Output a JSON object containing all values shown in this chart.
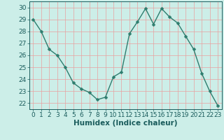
{
  "x": [
    0,
    1,
    2,
    3,
    4,
    5,
    6,
    7,
    8,
    9,
    10,
    11,
    12,
    13,
    14,
    15,
    16,
    17,
    18,
    19,
    20,
    21,
    22,
    23
  ],
  "y": [
    29,
    28,
    26.5,
    26,
    25,
    23.7,
    23.2,
    22.9,
    22.3,
    22.5,
    24.2,
    24.6,
    27.8,
    28.8,
    29.9,
    28.6,
    29.9,
    29.2,
    28.7,
    27.6,
    26.5,
    24.5,
    23.0,
    21.8
  ],
  "line_color": "#2e7d6e",
  "marker": "D",
  "marker_size": 2.5,
  "bg_color": "#cceee8",
  "grid_color_major": "#e8a0a0",
  "xlabel": "Humidex (Indice chaleur)",
  "xlim": [
    -0.5,
    23.5
  ],
  "ylim": [
    21.5,
    30.5
  ],
  "yticks": [
    22,
    23,
    24,
    25,
    26,
    27,
    28,
    29,
    30
  ],
  "xticks": [
    0,
    1,
    2,
    3,
    4,
    5,
    6,
    7,
    8,
    9,
    10,
    11,
    12,
    13,
    14,
    15,
    16,
    17,
    18,
    19,
    20,
    21,
    22,
    23
  ],
  "tick_color": "#1a5c5c",
  "label_fontsize": 6.5,
  "xlabel_fontsize": 7.5
}
